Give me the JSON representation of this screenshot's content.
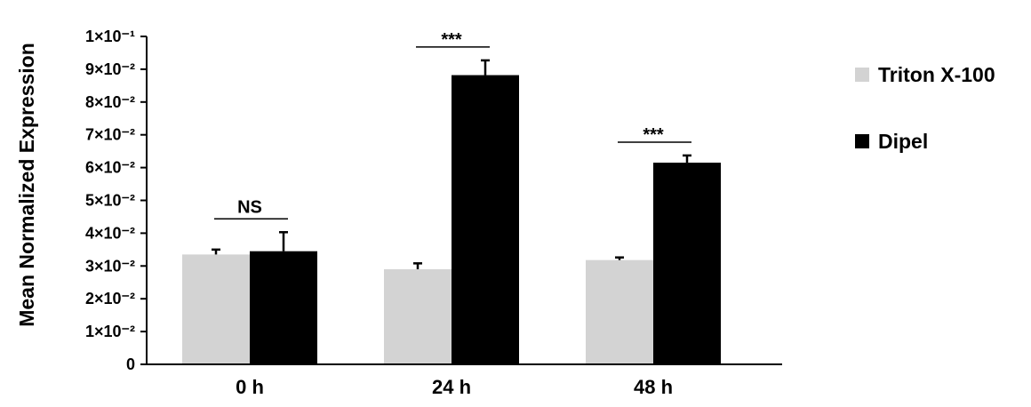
{
  "chart_data": {
    "type": "bar",
    "categories": [
      "0 h",
      "24 h",
      "48 h"
    ],
    "ylabel": "Mean Normalized Expression",
    "xlabel": "",
    "ylim": [
      0,
      0.1
    ],
    "yticks": [
      {
        "value": 0,
        "label": "0"
      },
      {
        "value": 0.01,
        "label": "1×10⁻²"
      },
      {
        "value": 0.02,
        "label": "2×10⁻²"
      },
      {
        "value": 0.03,
        "label": "3×10⁻²"
      },
      {
        "value": 0.04,
        "label": "4×10⁻²"
      },
      {
        "value": 0.05,
        "label": "5×10⁻²"
      },
      {
        "value": 0.06,
        "label": "6×10⁻²"
      },
      {
        "value": 0.07,
        "label": "7×10⁻²"
      },
      {
        "value": 0.08,
        "label": "8×10⁻²"
      },
      {
        "value": 0.09,
        "label": "9×10⁻²"
      },
      {
        "value": 0.1,
        "label": "1×10⁻¹"
      }
    ],
    "series": [
      {
        "name": "Triton X-100",
        "color": "#d3d3d3",
        "values": [
          0.0335,
          0.029,
          0.0318
        ],
        "errors": [
          0.0015,
          0.0018,
          0.0008
        ]
      },
      {
        "name": "Dipel",
        "color": "#000000",
        "values": [
          0.0345,
          0.0882,
          0.0615
        ],
        "errors": [
          0.0058,
          0.0045,
          0.0022
        ]
      }
    ],
    "significance": [
      {
        "category": "0 h",
        "label": "NS"
      },
      {
        "category": "24 h",
        "label": "***"
      },
      {
        "category": "48 h",
        "label": "***"
      }
    ],
    "legend_position": "right",
    "grid": false
  }
}
